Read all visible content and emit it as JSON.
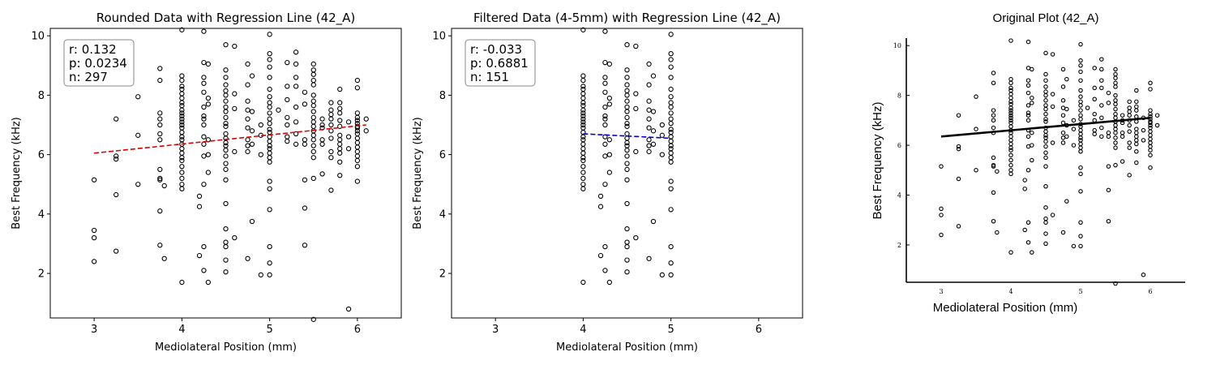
{
  "figure": {
    "colors": {
      "axis": "#000000",
      "marker": "#000000",
      "red_fit": "#e00000",
      "blue_fit": "#0000dd",
      "stats_border": "#888888"
    }
  },
  "chart_data": [
    {
      "type": "scatter",
      "title": "Rounded Data with Regression Line (42_A)",
      "xlabel": "Mediolateral Position (mm)",
      "ylabel": "Best Frequency (kHz)",
      "xlim": [
        2.5,
        6.5
      ],
      "ylim": [
        0.5,
        10.25
      ],
      "xticks": [
        "3",
        "4",
        "5",
        "6"
      ],
      "yticks": [
        "2",
        "4",
        "6",
        "8",
        "10"
      ],
      "grid": false,
      "stats": {
        "r": "r: 0.132",
        "p": "p: 0.0234",
        "n": "n: 297"
      },
      "stats_placement": "top-left",
      "fit_line": {
        "x": [
          3.0,
          6.1
        ],
        "y": [
          6.05,
          7.0
        ],
        "style": "dashed",
        "color": "#e00000"
      },
      "scatter": {
        "3": [
          5.15,
          3.45,
          3.2,
          2.4
        ],
        "3.25": [
          7.2,
          5.85,
          5.95,
          4.65,
          2.75
        ],
        "3.5": [
          7.95,
          6.65,
          5.0
        ],
        "3.75": [
          8.9,
          8.5,
          7.4,
          7.2,
          7.0,
          6.7,
          6.5,
          5.5,
          5.15,
          5.2,
          4.1,
          2.95
        ],
        "3.8": [
          4.95,
          2.5
        ],
        "4": [
          10.2,
          8.65,
          8.5,
          8.3,
          8.2,
          8.05,
          7.9,
          7.75,
          7.65,
          7.5,
          7.4,
          7.3,
          7.2,
          7.1,
          7.0,
          6.9,
          6.75,
          6.6,
          6.5,
          6.35,
          6.2,
          6.05,
          5.9,
          5.8,
          5.6,
          5.4,
          5.2,
          5.0,
          4.85,
          1.7
        ],
        "4.2": [
          4.6,
          4.25,
          2.6
        ],
        "4.25": [
          10.15,
          9.1,
          8.6,
          8.4,
          8.1,
          7.6,
          7.3,
          7.2,
          7.0,
          6.6,
          6.35,
          5.95,
          5.0,
          2.9,
          2.1
        ],
        "4.3": [
          9.05,
          7.9,
          7.7,
          6.5,
          6.0,
          5.4,
          1.7
        ],
        "4.5": [
          9.7,
          8.85,
          8.6,
          8.35,
          8.15,
          8.0,
          7.8,
          7.6,
          7.45,
          7.25,
          7.05,
          6.95,
          6.7,
          6.55,
          6.4,
          6.3,
          6.15,
          5.95,
          5.7,
          5.5,
          5.15,
          4.35,
          3.5,
          3.05,
          2.9,
          2.45,
          2.05
        ],
        "4.6": [
          9.65,
          8.05,
          7.55,
          6.1,
          3.2
        ],
        "4.75": [
          9.05,
          8.35,
          7.8,
          7.5,
          7.2,
          6.9,
          6.5,
          6.3,
          6.1,
          2.5
        ],
        "4.8": [
          8.65,
          7.45,
          6.8,
          6.35,
          3.75
        ],
        "4.9": [
          7.0,
          6.65,
          6.0,
          1.95
        ],
        "5": [
          10.05,
          9.4,
          9.2,
          8.95,
          8.6,
          8.2,
          7.95,
          7.75,
          7.6,
          7.4,
          7.2,
          7.05,
          6.85,
          6.75,
          6.6,
          6.45,
          6.3,
          6.2,
          6.05,
          5.9,
          5.75,
          5.1,
          4.85,
          4.15,
          2.9,
          2.35,
          1.95
        ],
        "5.1": [
          7.5
        ],
        "5.2": [
          9.1,
          8.3,
          7.85,
          7.25,
          7.0,
          6.6,
          6.45
        ],
        "5.3": [
          9.45,
          9.05,
          8.6,
          8.3,
          7.6,
          7.1,
          6.7,
          6.35
        ],
        "5.4": [
          8.1,
          7.7,
          6.5,
          6.35,
          5.15,
          4.2,
          2.95
        ],
        "5.5": [
          9.05,
          8.85,
          8.7,
          8.5,
          8.35,
          8.0,
          7.8,
          7.65,
          7.45,
          7.25,
          7.1,
          6.95,
          6.8,
          6.65,
          6.5,
          6.3,
          6.1,
          5.9,
          5.2,
          0.45
        ],
        "5.6": [
          7.2,
          7.0,
          6.9,
          6.5,
          6.35,
          5.35
        ],
        "5.7": [
          7.75,
          7.5,
          7.35,
          7.2,
          7.0,
          6.8,
          6.55,
          6.1,
          5.9,
          4.8
        ],
        "5.8": [
          8.2,
          7.75,
          7.55,
          7.4,
          7.15,
          6.95,
          6.65,
          6.5,
          6.35,
          6.2,
          6.05,
          5.75,
          5.3
        ],
        "5.9": [
          7.1,
          6.6,
          6.2,
          0.8
        ],
        "6": [
          8.5,
          8.25,
          7.4,
          7.25,
          7.15,
          7.05,
          6.95,
          6.9,
          6.8,
          6.7,
          6.55,
          6.4,
          6.25,
          6.1,
          5.95,
          5.8,
          5.6,
          5.1
        ],
        "6.1": [
          7.2,
          6.8
        ]
      }
    },
    {
      "type": "scatter",
      "title": "Filtered Data (4-5mm) with Regression Line (42_A)",
      "xlabel": "Mediolateral Position (mm)",
      "ylabel": "Best Frequency (kHz)",
      "xlim": [
        2.5,
        6.5
      ],
      "ylim": [
        0.5,
        10.25
      ],
      "xticks": [
        "3",
        "4",
        "5",
        "6"
      ],
      "yticks": [
        "2",
        "4",
        "6",
        "8",
        "10"
      ],
      "grid": false,
      "stats": {
        "r": "r: -0.033",
        "p": "p: 0.6881",
        "n": "n: 151"
      },
      "stats_placement": "top-left",
      "fit_line": {
        "x": [
          4.0,
          5.0
        ],
        "y": [
          6.7,
          6.55
        ],
        "style": "dashed",
        "color": "#0000dd"
      },
      "scatter_from_panel": 0,
      "filter_x": [
        4.0,
        5.0
      ]
    },
    {
      "type": "scatter",
      "title": "Original Plot (42_A)",
      "xlabel": "Mediolateral Position (mm)",
      "ylabel": "Best Frequency (kHz)",
      "xlim": [
        2.5,
        6.5
      ],
      "ylim": [
        0.5,
        10.3
      ],
      "xticks": [
        "3",
        "4",
        "5",
        "6"
      ],
      "yticks": [
        "2",
        "4",
        "6",
        "8",
        "10"
      ],
      "grid": false,
      "fit_line": {
        "x": [
          3.0,
          6.0
        ],
        "y": [
          6.35,
          7.1
        ],
        "style": "solid",
        "color": "#000000"
      },
      "scatter_from_panel": 0
    }
  ]
}
